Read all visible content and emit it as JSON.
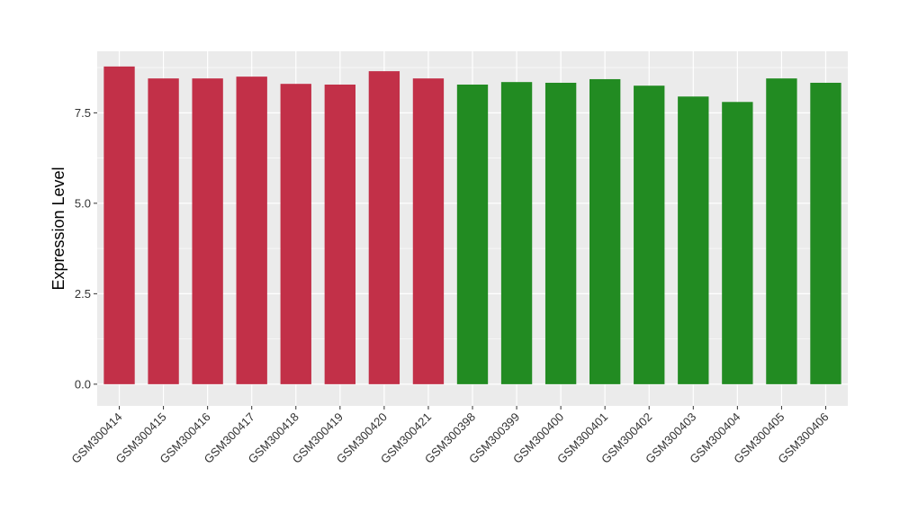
{
  "chart_data": {
    "type": "bar",
    "title": "",
    "xlabel": "",
    "ylabel": "Expression Level",
    "ylim": [
      -0.6,
      9.2
    ],
    "yticks": [
      0.0,
      2.5,
      5.0,
      7.5
    ],
    "ytick_labels": [
      "0.0",
      "2.5",
      "5.0",
      "7.5"
    ],
    "grid": true,
    "legend": "none",
    "categories": [
      "GSM300414",
      "GSM300415",
      "GSM300416",
      "GSM300417",
      "GSM300418",
      "GSM300419",
      "GSM300420",
      "GSM300421",
      "GSM300398",
      "GSM300399",
      "GSM300400",
      "GSM300401",
      "GSM300402",
      "GSM300403",
      "GSM300404",
      "GSM300405",
      "GSM300406"
    ],
    "values": [
      8.78,
      8.45,
      8.45,
      8.5,
      8.3,
      8.28,
      8.65,
      8.45,
      8.28,
      8.35,
      8.33,
      8.43,
      8.25,
      7.95,
      7.8,
      8.45,
      8.33
    ],
    "colors": [
      "#C23048",
      "#C23048",
      "#C23048",
      "#C23048",
      "#C23048",
      "#C23048",
      "#C23048",
      "#C23048",
      "#228B22",
      "#228B22",
      "#228B22",
      "#228B22",
      "#228B22",
      "#228B22",
      "#228B22",
      "#228B22",
      "#228B22"
    ],
    "panel_background": "#EBEBEB",
    "gridline_color": "#FFFFFF"
  }
}
